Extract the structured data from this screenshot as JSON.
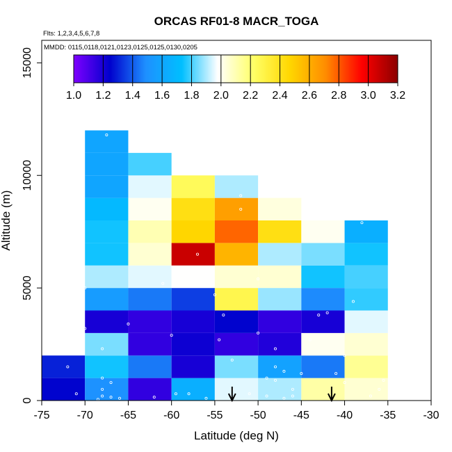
{
  "chart_data": {
    "type": "heatmap",
    "title": "ORCAS RF01-8 MACR_TOGA",
    "subtitle_flights": "Flts: 1,2,3,4,5,6,7,8",
    "subtitle_dates": "MMDD: 0115,0118,0121,0123,0125,0125,0130,0205",
    "xlabel": "Latitude (deg N)",
    "ylabel": "Altitude (m)",
    "xlim": [
      -75,
      -30
    ],
    "ylim": [
      0,
      16000
    ],
    "x_ticks": [
      -75,
      -70,
      -65,
      -60,
      -55,
      -50,
      -45,
      -40,
      -35,
      -30
    ],
    "y_ticks": [
      0,
      5000,
      10000,
      15000
    ],
    "colorbar": {
      "min": 1.0,
      "max": 3.2,
      "ticks": [
        "1.0",
        "1.2",
        "1.4",
        "1.6",
        "1.8",
        "2.0",
        "2.2",
        "2.4",
        "2.6",
        "2.8",
        "3.0",
        "3.2"
      ],
      "stops": [
        "#7f00ff",
        "#0000cd",
        "#1e90ff",
        "#00bfff",
        "#ffffff",
        "#ffff66",
        "#ffd700",
        "#ff8c00",
        "#ff0000",
        "#8b0000"
      ]
    },
    "cell_size": {
      "dlat": 5,
      "dalt": 1000
    },
    "columns": [
      {
        "lat": -75,
        "values": [
          1.25,
          1.3
        ]
      },
      {
        "lat": -70,
        "values": [
          1.5,
          1.75,
          1.85,
          1.2,
          1.55,
          1.9,
          1.75,
          1.75,
          1.7,
          1.6,
          1.6,
          1.6
        ]
      },
      {
        "lat": -65,
        "values": [
          1.15,
          1.45,
          1.15,
          1.15,
          1.45,
          1.95,
          2.05,
          2.1,
          2.0,
          1.95,
          1.8
        ]
      },
      {
        "lat": -60,
        "values": [
          1.65,
          1.2,
          1.22,
          1.2,
          1.35,
          1.98,
          3.07,
          2.47,
          2.42,
          2.25
        ]
      },
      {
        "lat": -55,
        "values": [
          1.95,
          1.85,
          1.15,
          1.25,
          2.28,
          2.05,
          2.58,
          2.78,
          2.65,
          1.9
        ]
      },
      {
        "lat": -50,
        "values": [
          1.9,
          1.58,
          1.18,
          1.15,
          1.88,
          2.05,
          1.9,
          2.42,
          2.03
        ]
      },
      {
        "lat": -45,
        "values": [
          2.12,
          1.45,
          2.0,
          1.2,
          1.48,
          1.75,
          1.85,
          2.0
        ]
      },
      {
        "lat": -40,
        "values": [
          2.05,
          2.15,
          2.05,
          1.95,
          1.78,
          1.8,
          1.75,
          1.65
        ]
      }
    ],
    "markers": [
      {
        "type": "arrow",
        "lat": -53
      },
      {
        "type": "arrow",
        "lat": -41.5
      }
    ],
    "sample_points": [
      [
        -72,
        1500
      ],
      [
        -71,
        300
      ],
      [
        -68,
        200
      ],
      [
        -68,
        500
      ],
      [
        -68,
        1000
      ],
      [
        -68.5,
        50
      ],
      [
        -67,
        150
      ],
      [
        -67,
        800
      ],
      [
        -66,
        100
      ],
      [
        -68,
        2300
      ],
      [
        -67.5,
        11800
      ],
      [
        -70,
        3200
      ],
      [
        -70,
        5000
      ],
      [
        -62,
        150
      ],
      [
        -61,
        5200
      ],
      [
        -60,
        2900
      ],
      [
        -59.5,
        300
      ],
      [
        -58,
        300
      ],
      [
        -56,
        100
      ],
      [
        -57,
        6500
      ],
      [
        -56,
        5600
      ],
      [
        -55,
        4700
      ],
      [
        -54,
        3800
      ],
      [
        -53,
        1800
      ],
      [
        -53,
        500
      ],
      [
        -52,
        9100
      ],
      [
        -52,
        8500
      ],
      [
        -50,
        5400
      ],
      [
        -50,
        3000
      ],
      [
        -48,
        2300
      ],
      [
        -48,
        1500
      ],
      [
        -47,
        1300
      ],
      [
        -49,
        1000
      ],
      [
        -49,
        200
      ],
      [
        -48,
        900
      ],
      [
        -47,
        100
      ],
      [
        -51,
        300
      ],
      [
        -46,
        200
      ],
      [
        -46,
        500
      ],
      [
        -45,
        1200
      ],
      [
        -44,
        2700
      ],
      [
        -43,
        3800
      ],
      [
        -42,
        3900
      ],
      [
        -41,
        1200
      ],
      [
        -40,
        2000
      ],
      [
        -40,
        800
      ],
      [
        -39,
        4400
      ],
      [
        -38,
        7900
      ],
      [
        -36,
        500
      ],
      [
        -37,
        200
      ],
      [
        -35.5,
        900
      ],
      [
        -54.5,
        2700
      ],
      [
        -65,
        3400
      ]
    ]
  }
}
